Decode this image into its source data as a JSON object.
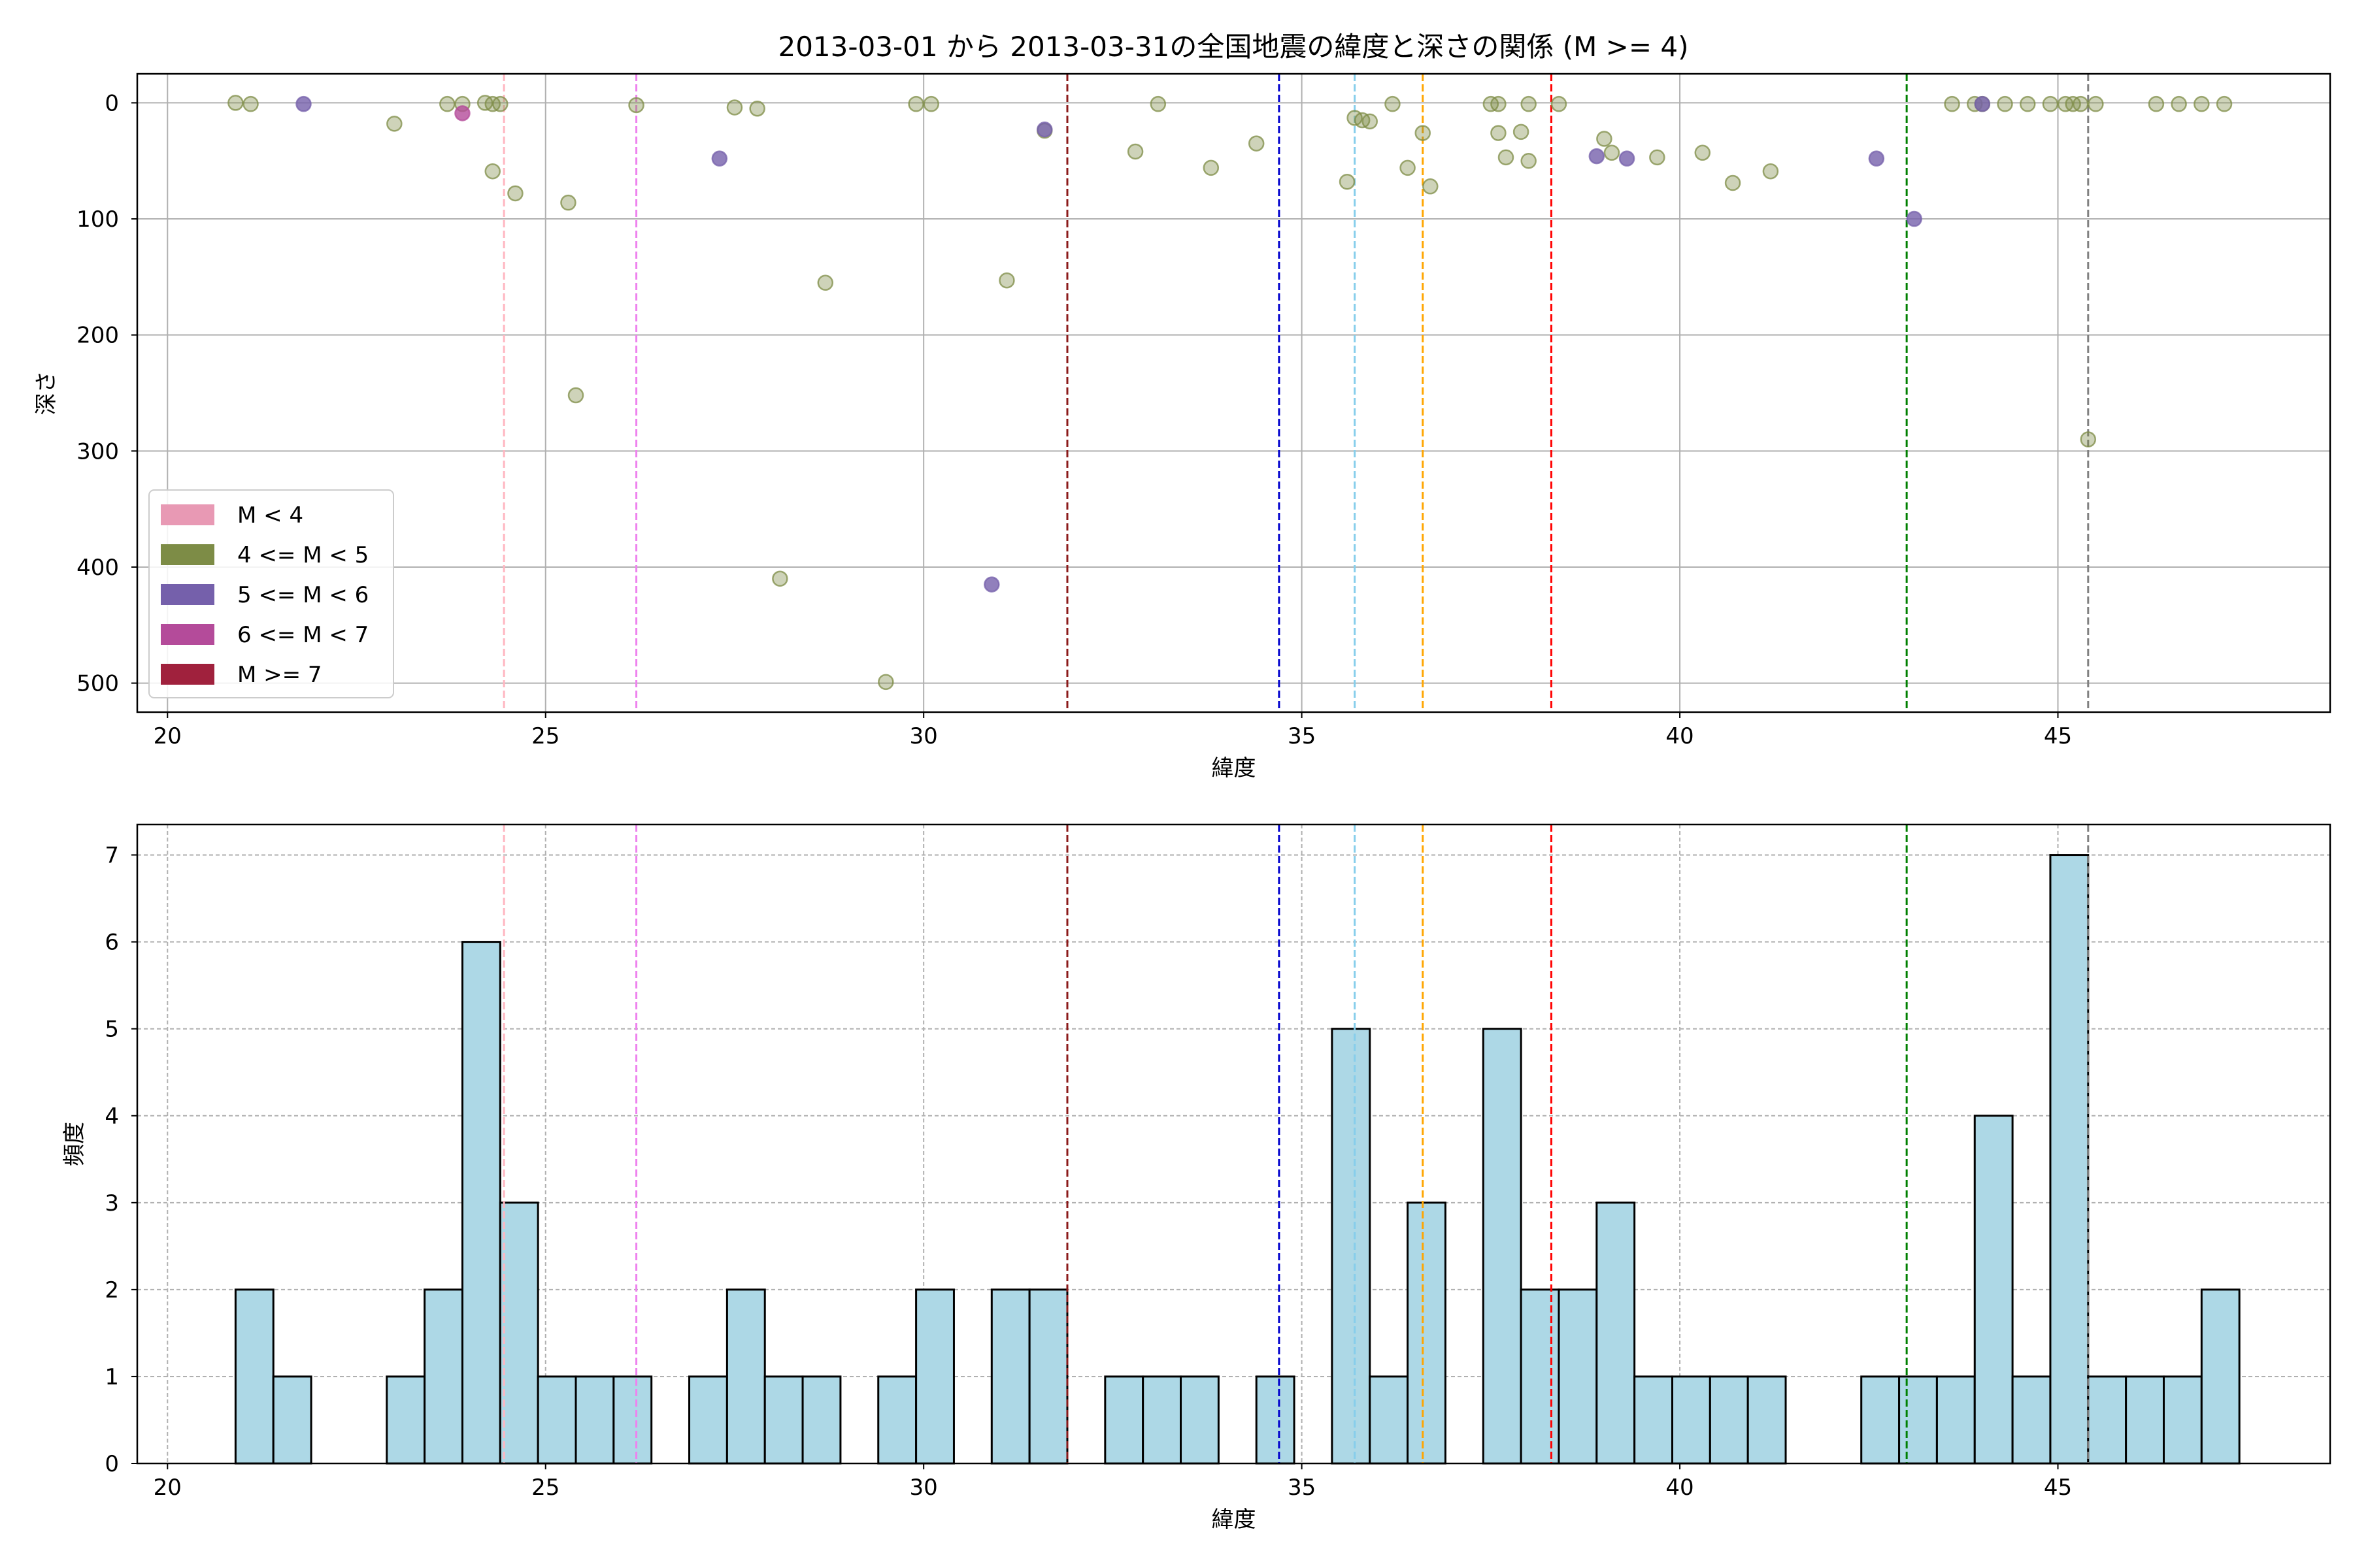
{
  "title": "2013-03-01 から 2013-03-31の全国地震の緯度と深さの関係 (M >= 4)",
  "colors": {
    "scatter_m4_5": "#7d8c46",
    "scatter_m5_6": "#7560ab",
    "scatter_m6_7": "#b44b9a",
    "hist_fill": "#add8e6",
    "hist_edge": "#000000",
    "grid": "#b0b0b0"
  },
  "legend": [
    {
      "label": "M < 4",
      "color": "#e899b4"
    },
    {
      "label": "4 <= M < 5",
      "color": "#7d8c46"
    },
    {
      "label": "5 <= M < 6",
      "color": "#7560ab"
    },
    {
      "label": "6 <= M < 7",
      "color": "#b44b9a"
    },
    {
      "label": "M >= 7",
      "color": "#a0213d"
    }
  ],
  "chart_data": [
    {
      "type": "scatter",
      "xlabel": "緯度",
      "ylabel": "深さ",
      "xlim": [
        19.6,
        48.6
      ],
      "ylim": [
        525,
        -25
      ],
      "y_inverted": true,
      "xticks": [
        20,
        25,
        30,
        35,
        40,
        45
      ],
      "yticks": [
        0,
        100,
        200,
        300,
        400,
        500
      ],
      "grid": true,
      "legend_position": "lower-left",
      "reference_lines": [
        {
          "x": 24.45,
          "color": "#ffb6c1"
        },
        {
          "x": 26.2,
          "color": "#ee82ee"
        },
        {
          "x": 31.9,
          "color": "#8b1a1a"
        },
        {
          "x": 34.7,
          "color": "#0000cd"
        },
        {
          "x": 35.7,
          "color": "#87ceeb"
        },
        {
          "x": 36.6,
          "color": "#ffa500"
        },
        {
          "x": 38.3,
          "color": "#ff0000"
        },
        {
          "x": 43.0,
          "color": "#008000"
        },
        {
          "x": 45.4,
          "color": "#808080"
        }
      ],
      "series": [
        {
          "name": "4 <= M < 5",
          "color": "#7d8c46",
          "points": [
            [
              20.9,
              0
            ],
            [
              21.1,
              1
            ],
            [
              23.0,
              18
            ],
            [
              23.7,
              1
            ],
            [
              23.9,
              1
            ],
            [
              24.2,
              0
            ],
            [
              24.3,
              1
            ],
            [
              24.4,
              1
            ],
            [
              24.3,
              59
            ],
            [
              24.6,
              78
            ],
            [
              25.3,
              86
            ],
            [
              25.4,
              252
            ],
            [
              26.2,
              2
            ],
            [
              27.5,
              4
            ],
            [
              27.8,
              5
            ],
            [
              28.1,
              410
            ],
            [
              28.7,
              155
            ],
            [
              29.5,
              499
            ],
            [
              29.9,
              1
            ],
            [
              30.1,
              1
            ],
            [
              31.1,
              153
            ],
            [
              31.6,
              24
            ],
            [
              32.8,
              42
            ],
            [
              33.1,
              1
            ],
            [
              33.8,
              56
            ],
            [
              34.4,
              35
            ],
            [
              35.6,
              68
            ],
            [
              35.7,
              13
            ],
            [
              35.8,
              15
            ],
            [
              35.9,
              16
            ],
            [
              36.2,
              1
            ],
            [
              36.4,
              56
            ],
            [
              36.6,
              26
            ],
            [
              36.7,
              72
            ],
            [
              37.5,
              1
            ],
            [
              37.6,
              1
            ],
            [
              37.6,
              26
            ],
            [
              37.7,
              47
            ],
            [
              37.9,
              25
            ],
            [
              38.0,
              50
            ],
            [
              38.0,
              1
            ],
            [
              38.4,
              1
            ],
            [
              39.0,
              31
            ],
            [
              39.1,
              43
            ],
            [
              39.7,
              47
            ],
            [
              40.3,
              43
            ],
            [
              40.7,
              69
            ],
            [
              41.2,
              59
            ],
            [
              43.6,
              1
            ],
            [
              43.9,
              1
            ],
            [
              44.0,
              1
            ],
            [
              44.3,
              1
            ],
            [
              44.6,
              1
            ],
            [
              44.9,
              1
            ],
            [
              45.1,
              1
            ],
            [
              45.2,
              1
            ],
            [
              45.3,
              1
            ],
            [
              45.5,
              1
            ],
            [
              45.4,
              290
            ],
            [
              46.3,
              1
            ],
            [
              46.6,
              1
            ],
            [
              46.9,
              1
            ],
            [
              47.2,
              1
            ]
          ]
        },
        {
          "name": "5 <= M < 6",
          "color": "#7560ab",
          "points": [
            [
              21.8,
              1
            ],
            [
              27.3,
              48
            ],
            [
              30.9,
              415
            ],
            [
              31.6,
              23
            ],
            [
              38.9,
              46
            ],
            [
              39.3,
              48
            ],
            [
              42.6,
              48
            ],
            [
              43.1,
              100
            ],
            [
              44.0,
              1
            ]
          ]
        },
        {
          "name": "6 <= M < 7",
          "color": "#b44b9a",
          "points": [
            [
              23.9,
              9
            ]
          ]
        }
      ]
    },
    {
      "type": "bar",
      "xlabel": "緯度",
      "ylabel": "頻度",
      "xlim": [
        19.6,
        48.6
      ],
      "ylim": [
        0,
        7.35
      ],
      "xticks": [
        20,
        25,
        30,
        35,
        40,
        45
      ],
      "yticks": [
        0,
        1,
        2,
        3,
        4,
        5,
        6,
        7
      ],
      "grid": true,
      "bin_width": 0.5,
      "reference_lines": [
        {
          "x": 24.45,
          "color": "#ffb6c1"
        },
        {
          "x": 26.2,
          "color": "#ee82ee"
        },
        {
          "x": 31.9,
          "color": "#8b1a1a"
        },
        {
          "x": 34.7,
          "color": "#0000cd"
        },
        {
          "x": 35.7,
          "color": "#87ceeb"
        },
        {
          "x": 36.6,
          "color": "#ffa500"
        },
        {
          "x": 38.3,
          "color": "#ff0000"
        },
        {
          "x": 43.0,
          "color": "#008000"
        },
        {
          "x": 45.4,
          "color": "#808080"
        }
      ],
      "bins": [
        {
          "start": 20.9,
          "count": 2
        },
        {
          "start": 21.4,
          "count": 1
        },
        {
          "start": 22.9,
          "count": 1
        },
        {
          "start": 23.4,
          "count": 2
        },
        {
          "start": 23.9,
          "count": 6
        },
        {
          "start": 24.4,
          "count": 3
        },
        {
          "start": 24.9,
          "count": 1
        },
        {
          "start": 25.4,
          "count": 1
        },
        {
          "start": 25.9,
          "count": 1
        },
        {
          "start": 26.9,
          "count": 1
        },
        {
          "start": 27.4,
          "count": 2
        },
        {
          "start": 27.9,
          "count": 1
        },
        {
          "start": 28.4,
          "count": 1
        },
        {
          "start": 29.4,
          "count": 1
        },
        {
          "start": 29.9,
          "count": 2
        },
        {
          "start": 30.9,
          "count": 2
        },
        {
          "start": 31.4,
          "count": 2
        },
        {
          "start": 32.4,
          "count": 1
        },
        {
          "start": 32.9,
          "count": 1
        },
        {
          "start": 33.4,
          "count": 1
        },
        {
          "start": 34.4,
          "count": 1
        },
        {
          "start": 35.4,
          "count": 5
        },
        {
          "start": 35.9,
          "count": 1
        },
        {
          "start": 36.4,
          "count": 3
        },
        {
          "start": 37.4,
          "count": 5
        },
        {
          "start": 37.9,
          "count": 2
        },
        {
          "start": 38.4,
          "count": 2
        },
        {
          "start": 38.9,
          "count": 3
        },
        {
          "start": 39.4,
          "count": 1
        },
        {
          "start": 39.9,
          "count": 1
        },
        {
          "start": 40.4,
          "count": 1
        },
        {
          "start": 40.9,
          "count": 1
        },
        {
          "start": 42.4,
          "count": 1
        },
        {
          "start": 42.9,
          "count": 1
        },
        {
          "start": 43.4,
          "count": 1
        },
        {
          "start": 43.9,
          "count": 4
        },
        {
          "start": 44.4,
          "count": 1
        },
        {
          "start": 44.9,
          "count": 7
        },
        {
          "start": 45.4,
          "count": 1
        },
        {
          "start": 45.9,
          "count": 1
        },
        {
          "start": 46.4,
          "count": 1
        },
        {
          "start": 46.9,
          "count": 2
        }
      ]
    }
  ]
}
